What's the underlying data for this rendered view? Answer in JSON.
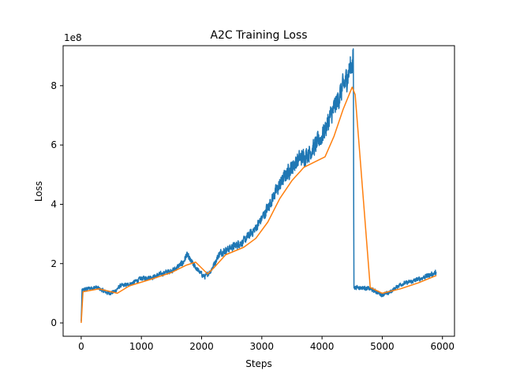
{
  "chart_data": {
    "type": "line",
    "title": "A2C Training Loss",
    "xlabel": "Steps",
    "ylabel": "Loss",
    "y_scale_label": "1e8",
    "xlim": [
      -300,
      6200
    ],
    "ylim": [
      -0.45,
      9.35
    ],
    "x_ticks": [
      0,
      1000,
      2000,
      3000,
      4000,
      5000,
      6000
    ],
    "x_tick_labels": [
      "0",
      "1000",
      "2000",
      "3000",
      "4000",
      "5000",
      "6000"
    ],
    "y_ticks": [
      0,
      2,
      4,
      6,
      8
    ],
    "y_tick_labels": [
      "0",
      "2",
      "4",
      "6",
      "8"
    ],
    "grid": false,
    "legend": "none",
    "series": [
      {
        "color": "#1f77b4",
        "noisy": true,
        "points": [
          [
            0,
            0.05
          ],
          [
            15,
            1.1
          ],
          [
            100,
            1.15
          ],
          [
            250,
            1.2
          ],
          [
            350,
            1.1
          ],
          [
            450,
            1.0
          ],
          [
            550,
            1.05
          ],
          [
            650,
            1.25
          ],
          [
            800,
            1.3
          ],
          [
            1000,
            1.5
          ],
          [
            1200,
            1.55
          ],
          [
            1400,
            1.7
          ],
          [
            1550,
            1.8
          ],
          [
            1700,
            2.05
          ],
          [
            1750,
            2.3
          ],
          [
            1850,
            2.0
          ],
          [
            1950,
            1.75
          ],
          [
            2050,
            1.55
          ],
          [
            2150,
            1.75
          ],
          [
            2300,
            2.35
          ],
          [
            2500,
            2.55
          ],
          [
            2700,
            2.75
          ],
          [
            2900,
            3.2
          ],
          [
            3050,
            3.7
          ],
          [
            3200,
            4.3
          ],
          [
            3400,
            5.0
          ],
          [
            3600,
            5.5
          ],
          [
            3800,
            5.75
          ],
          [
            4000,
            6.3
          ],
          [
            4150,
            7.0
          ],
          [
            4300,
            7.7
          ],
          [
            4400,
            8.2
          ],
          [
            4500,
            8.8
          ],
          [
            4520,
            8.9
          ],
          [
            4530,
            1.2
          ],
          [
            4600,
            1.2
          ],
          [
            4800,
            1.15
          ],
          [
            5000,
            0.95
          ],
          [
            5100,
            1.0
          ],
          [
            5300,
            1.3
          ],
          [
            5500,
            1.4
          ],
          [
            5700,
            1.55
          ],
          [
            5900,
            1.7
          ]
        ]
      },
      {
        "color": "#ff7f0e",
        "noisy": false,
        "points": [
          [
            0,
            0.0
          ],
          [
            30,
            1.05
          ],
          [
            300,
            1.15
          ],
          [
            600,
            1.0
          ],
          [
            800,
            1.25
          ],
          [
            1200,
            1.5
          ],
          [
            1500,
            1.7
          ],
          [
            1750,
            1.95
          ],
          [
            1900,
            2.05
          ],
          [
            2000,
            1.85
          ],
          [
            2100,
            1.65
          ],
          [
            2200,
            1.85
          ],
          [
            2400,
            2.3
          ],
          [
            2700,
            2.55
          ],
          [
            2900,
            2.85
          ],
          [
            3100,
            3.4
          ],
          [
            3300,
            4.2
          ],
          [
            3500,
            4.8
          ],
          [
            3700,
            5.25
          ],
          [
            3900,
            5.45
          ],
          [
            4050,
            5.6
          ],
          [
            4200,
            6.3
          ],
          [
            4350,
            7.2
          ],
          [
            4500,
            7.95
          ],
          [
            4550,
            7.7
          ],
          [
            4800,
            1.2
          ],
          [
            5000,
            1.0
          ],
          [
            5300,
            1.15
          ],
          [
            5600,
            1.35
          ],
          [
            5900,
            1.6
          ]
        ]
      }
    ]
  }
}
